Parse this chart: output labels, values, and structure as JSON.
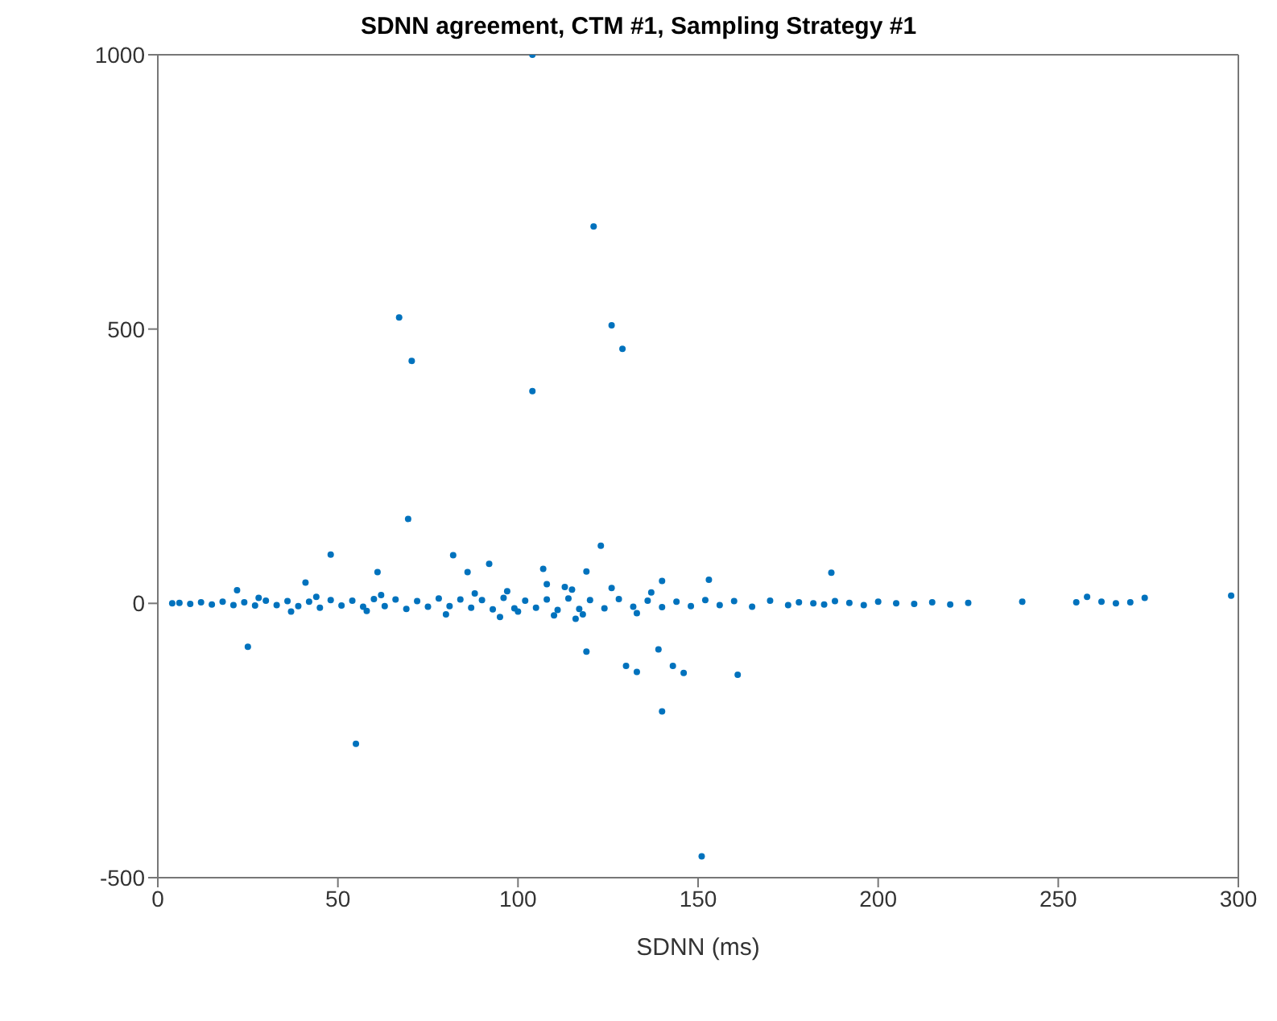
{
  "chart_data": {
    "type": "scatter",
    "title": "SDNN agreement, CTM #1, Sampling Strategy #1",
    "xlabel": "SDNN (ms)",
    "xlim": [
      0,
      300
    ],
    "xticks": [
      0,
      50,
      100,
      150,
      200,
      250,
      300
    ],
    "ylim": [
      -500,
      1000
    ],
    "yticks": [
      -500,
      0,
      500,
      1000
    ],
    "grid": false,
    "marker": "circle",
    "series": [
      {
        "color": "#0072bd",
        "x": [
          104,
          121,
          67,
          70.5,
          126,
          129,
          104,
          69.5,
          123,
          48,
          82,
          92,
          61,
          86,
          107,
          119,
          187,
          41,
          153,
          140,
          22,
          25,
          119,
          139,
          130,
          133,
          143,
          146,
          161,
          140,
          55,
          151,
          298,
          274,
          270,
          266,
          262,
          258,
          255,
          240,
          225,
          220,
          215,
          210,
          205,
          200,
          196,
          192,
          188,
          185,
          182,
          178,
          175,
          170,
          165,
          160,
          156,
          152,
          148,
          144,
          140,
          136,
          132,
          128,
          124,
          120,
          117,
          114,
          111,
          108,
          105,
          102,
          99,
          96,
          93,
          90,
          87,
          84,
          81,
          78,
          75,
          72,
          69,
          66,
          63,
          60,
          57,
          54,
          51,
          48,
          45,
          42,
          39,
          36,
          33,
          30,
          27,
          24,
          21,
          18,
          15,
          12,
          9,
          6,
          4,
          113,
          115,
          118,
          110,
          116,
          126,
          133,
          137,
          108,
          100,
          97,
          95,
          88,
          80,
          62,
          58,
          44,
          37,
          28
        ],
        "values": [
          1000,
          687,
          521,
          442,
          507,
          464,
          387,
          154,
          105,
          89,
          88,
          72,
          57,
          57,
          63,
          58,
          56,
          38,
          43,
          41,
          24,
          -79,
          -88,
          -84,
          -114,
          -125,
          -114,
          -127,
          -130,
          -197,
          -256,
          -461,
          14,
          10,
          2,
          0,
          3,
          12,
          2,
          3,
          1,
          -2,
          2,
          -1,
          0,
          3,
          -3,
          1,
          4,
          -2,
          0,
          2,
          -3,
          5,
          -6,
          4,
          -3,
          6,
          -5,
          3,
          -7,
          5,
          -6,
          8,
          -9,
          6,
          -10,
          9,
          -12,
          7,
          -8,
          5,
          -9,
          10,
          -11,
          6,
          -8,
          7,
          -5,
          9,
          -6,
          4,
          -10,
          7,
          -5,
          8,
          -6,
          5,
          -4,
          6,
          -8,
          3,
          -5,
          4,
          -3,
          5,
          -4,
          2,
          -3,
          3,
          -2,
          2,
          -1,
          1,
          0,
          30,
          25,
          -20,
          -22,
          -28,
          28,
          -18,
          20,
          35,
          -15,
          22,
          -25,
          18,
          -20,
          15,
          -14,
          12,
          -15,
          10
        ]
      }
    ]
  }
}
